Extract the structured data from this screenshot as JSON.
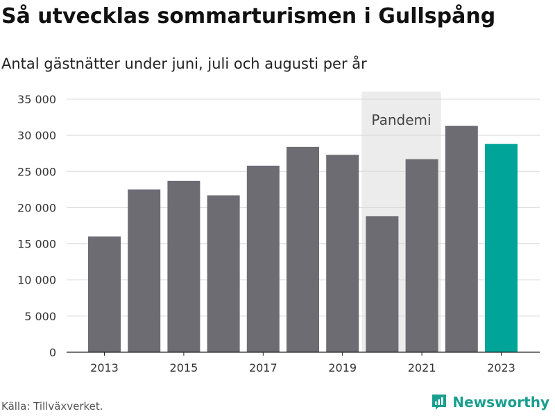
{
  "title": "Så utvecklas sommarturismen i Gullspång",
  "subtitle": "Antal gästnätter under juni, juli och augusti per år",
  "source": "Källa: Tillväxverket.",
  "brand": {
    "name": "Newsworthy",
    "icon": "newsworthy-logo-icon",
    "color": "#1a9e8f"
  },
  "chart_data": {
    "type": "bar",
    "categories": [
      "2013",
      "2014",
      "2015",
      "2016",
      "2017",
      "2018",
      "2019",
      "2020",
      "2021",
      "2022",
      "2023"
    ],
    "values": [
      16000,
      22500,
      23700,
      21700,
      25800,
      28400,
      27300,
      18800,
      26700,
      31300,
      28800
    ],
    "ylim": [
      0,
      35000
    ],
    "y_ticks": [
      0,
      5000,
      10000,
      15000,
      20000,
      25000,
      30000,
      35000
    ],
    "y_tick_labels": [
      "0",
      "5 000",
      "10 000",
      "15 000",
      "20 000",
      "25 000",
      "30 000",
      "35 000"
    ],
    "x_tick_labels": [
      "2013",
      "2015",
      "2017",
      "2019",
      "2021",
      "2023"
    ],
    "grid": true,
    "bar_color": "#6d6c73",
    "highlight_color": "#00a499",
    "highlight_category": "2023",
    "shaded_region": {
      "label": "Pandemi",
      "from": "2020",
      "to": "2021",
      "color": "#ececec"
    }
  }
}
